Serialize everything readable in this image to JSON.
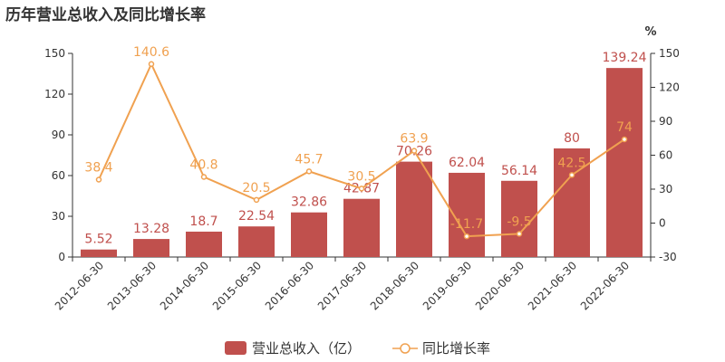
{
  "chart_data": {
    "type": "bar",
    "title": "历年营业总收入及同比增长率",
    "categories": [
      "2012-06-30",
      "2013-06-30",
      "2014-06-30",
      "2015-06-30",
      "2016-06-30",
      "2017-06-30",
      "2018-06-30",
      "2019-06-30",
      "2020-06-30",
      "2021-06-30",
      "2022-06-30"
    ],
    "series": [
      {
        "name": "营业总收入（亿）",
        "type": "bar",
        "axis": "left",
        "color": "#c0504d",
        "values": [
          5.52,
          13.28,
          18.7,
          22.54,
          32.86,
          42.87,
          70.26,
          62.04,
          56.14,
          80,
          139.24
        ]
      },
      {
        "name": "同比增长率",
        "type": "line",
        "axis": "right",
        "color": "#f0a150",
        "values": [
          38.4,
          140.6,
          40.8,
          20.5,
          45.7,
          30.5,
          63.9,
          -11.7,
          -9.5,
          42.5,
          74
        ]
      }
    ],
    "y_left": {
      "ylim": [
        0,
        150
      ],
      "ticks": [
        0,
        30,
        60,
        90,
        120,
        150
      ]
    },
    "y_right": {
      "ylim": [
        -30,
        150
      ],
      "ticks": [
        -30,
        0,
        30,
        60,
        90,
        120,
        150
      ],
      "unit": "%"
    },
    "legend": "bottom-center",
    "grid": false
  }
}
